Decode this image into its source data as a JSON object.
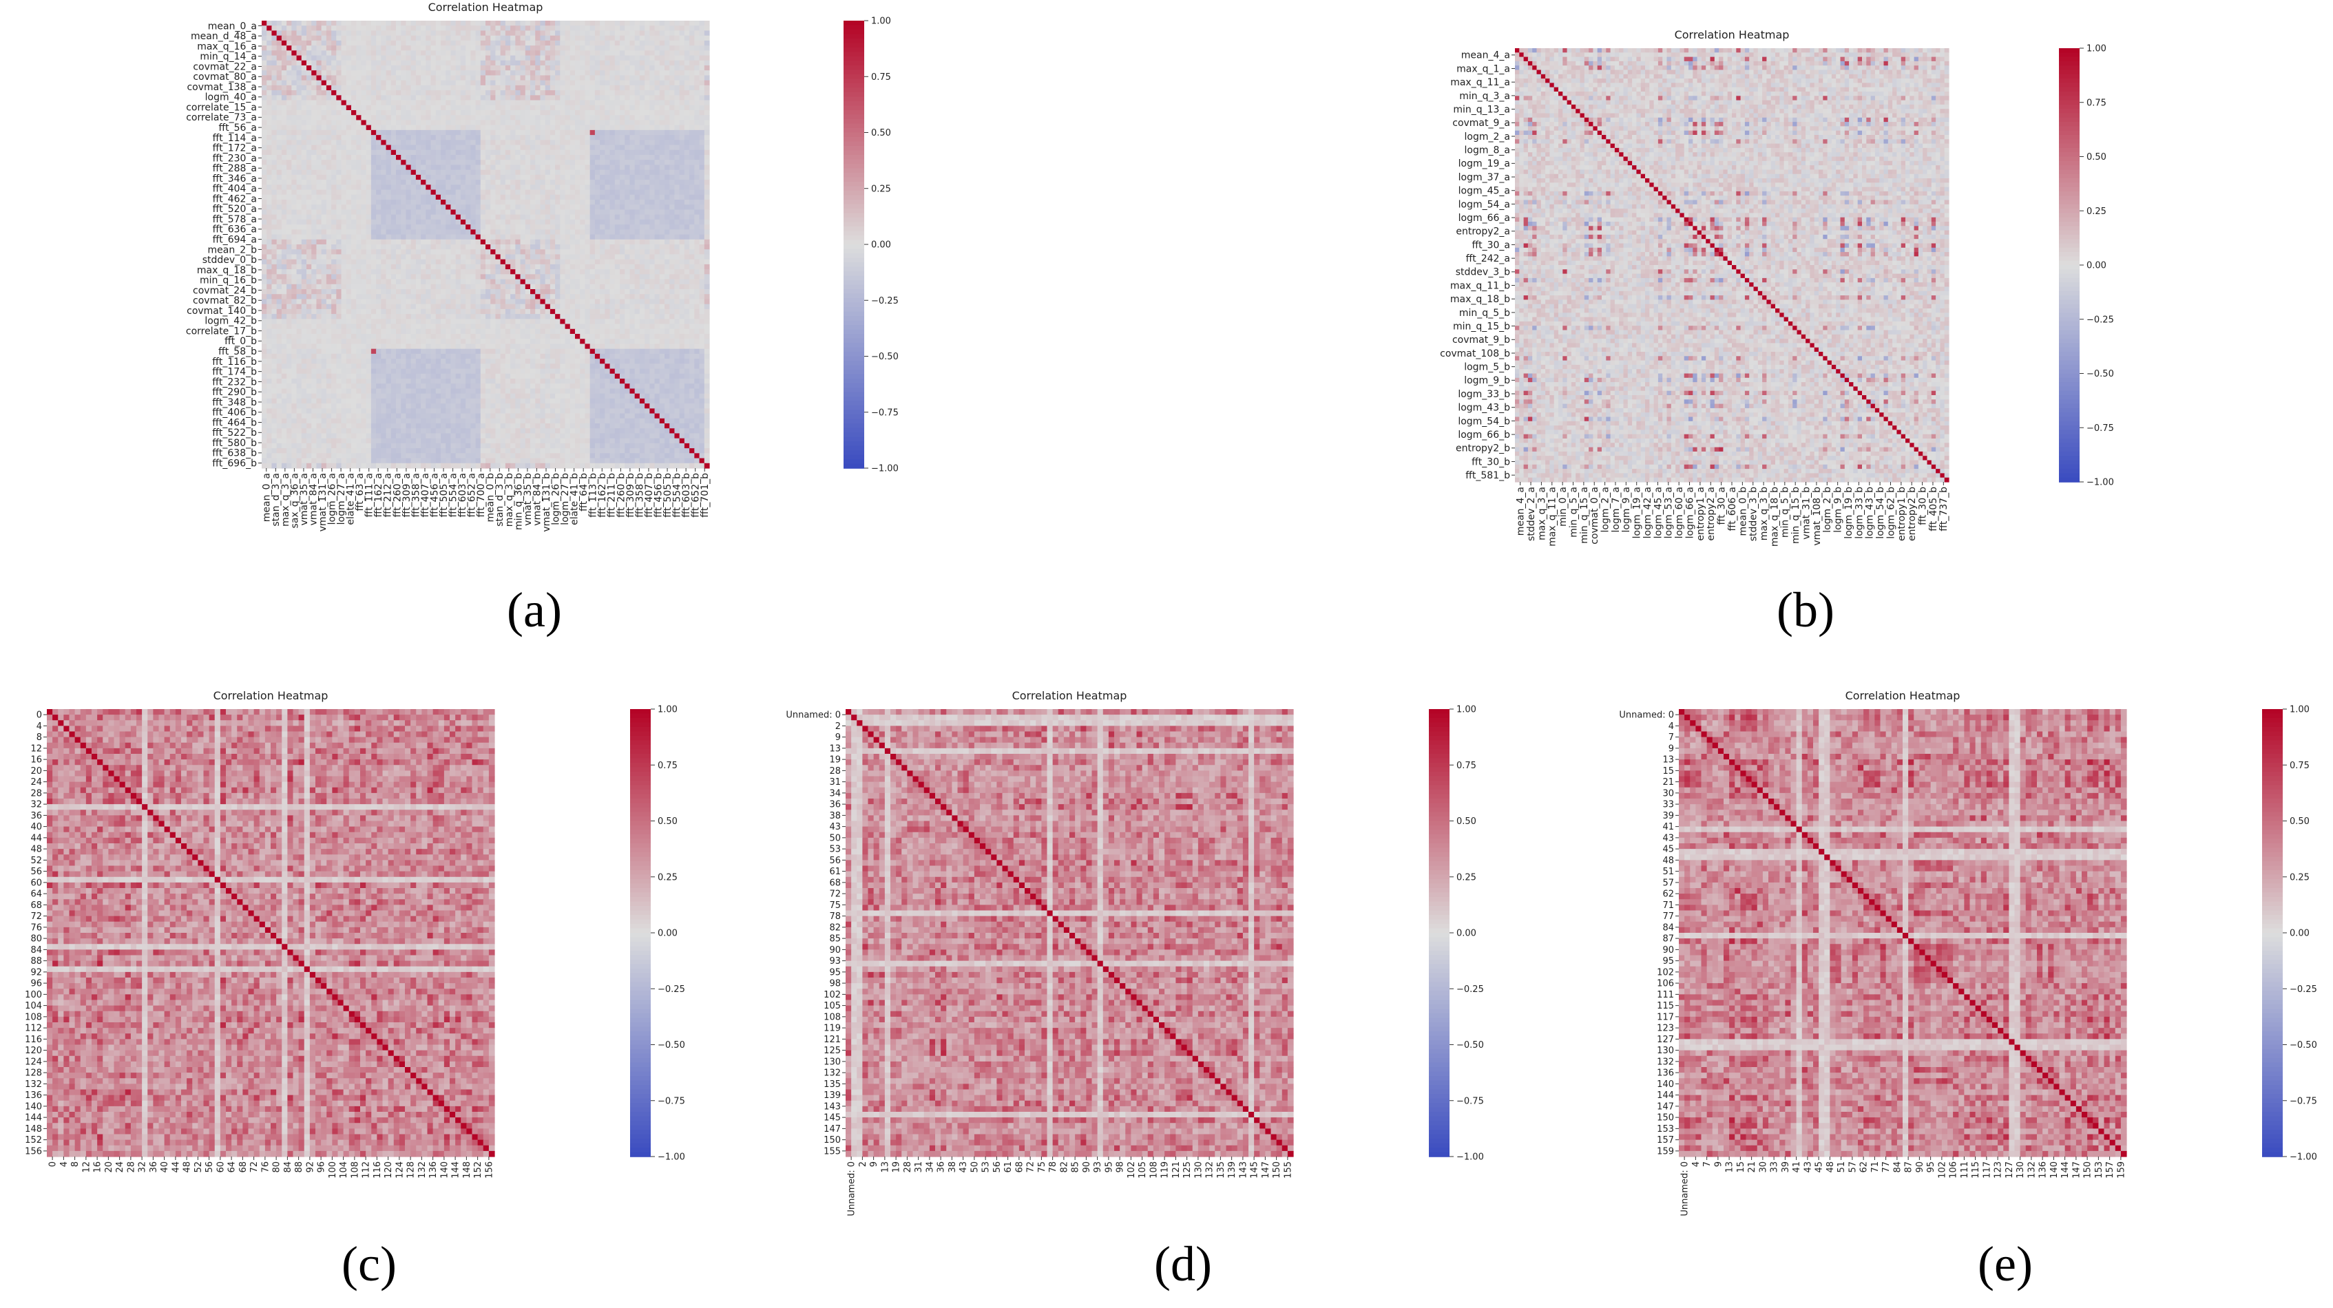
{
  "captions": [
    "(a)",
    "(b)",
    "(c)",
    "(d)",
    "(e)"
  ],
  "colormap": {
    "low": "#3b4cc0",
    "mid": "#dddddd",
    "high": "#b40426"
  },
  "chart_data": [
    {
      "id": "a",
      "type": "heatmap",
      "title": "Correlation Heatmap",
      "xlabel": "",
      "ylabel": "",
      "n": 90,
      "pattern": "features_a",
      "row_labels": [
        "mean_0_a",
        "mean_d_48_a",
        "max_q_16_a",
        "min_q_14_a",
        "covmat_22_a",
        "covmat_80_a",
        "covmat_138_a",
        "logm_40_a",
        "correlate_15_a",
        "correlate_73_a",
        "fft_56_a",
        "fft_114_a",
        "fft_172_a",
        "fft_230_a",
        "fft_288_a",
        "fft_346_a",
        "fft_404_a",
        "fft_462_a",
        "fft_520_a",
        "fft_578_a",
        "fft_636_a",
        "fft_694_a",
        "mean_2_b",
        "stddev_0_b",
        "max_q_18_b",
        "min_q_16_b",
        "covmat_24_b",
        "covmat_82_b",
        "covmat_140_b",
        "logm_42_b",
        "correlate_17_b",
        "fft_0_b",
        "fft_58_b",
        "fft_116_b",
        "fft_174_b",
        "fft_232_b",
        "fft_290_b",
        "fft_348_b",
        "fft_406_b",
        "fft_464_b",
        "fft_522_b",
        "fft_580_b",
        "fft_638_b",
        "fft_696_b"
      ],
      "col_labels": [
        "mean_0_a",
        "stan_d_3_a",
        "max_q_3_a",
        "sax_q_36_a",
        "vmat_35_a",
        "vmat_84_a",
        "vmat_131_a",
        "logm_26_a",
        "logm_27_a",
        "elate_41_a",
        "fft_63_a",
        "fft_111_a",
        "fft_162_a",
        "fft_212_a",
        "fft_260_a",
        "fft_309_a",
        "fft_358_a",
        "fft_407_a",
        "fft_456_a",
        "fft_505_a",
        "fft_554_a",
        "fft_603_a",
        "fft_652_a",
        "fft_700_a",
        "mean_0_b",
        "stan_d_3_b",
        "max_q_3_b",
        "min_q_36_b",
        "vmat_35_b",
        "vmat_84_b",
        "vmat_131_b",
        "logm_26_b",
        "logm_27_b",
        "elate_41_b",
        "fft_64_b",
        "fft_113_b",
        "fft_162_b",
        "fft_211_b",
        "fft_260_b",
        "fft_309_b",
        "fft_358_b",
        "fft_407_b",
        "fft_456_b",
        "fft_505_b",
        "fft_554_b",
        "fft_603_b",
        "fft_652_b",
        "fft_701_b"
      ],
      "colorbar_ticks": [
        "1.00",
        "0.75",
        "0.50",
        "0.25",
        "0.00",
        "−0.25",
        "−0.50",
        "−0.75",
        "−1.00"
      ],
      "vmin": -1,
      "vmax": 1
    },
    {
      "id": "b",
      "type": "heatmap",
      "title": "Correlation Heatmap",
      "xlabel": "",
      "ylabel": "",
      "n": 100,
      "pattern": "features_b",
      "row_labels": [
        "mean_4_a",
        "max_q_1_a",
        "max_q_11_a",
        "min_q_3_a",
        "min_q_13_a",
        "covmat_9_a",
        "logm_2_a",
        "logm_8_a",
        "logm_19_a",
        "logm_37_a",
        "logm_45_a",
        "logm_54_a",
        "logm_66_a",
        "entropy2_a",
        "fft_30_a",
        "fft_242_a",
        "stddev_3_b",
        "max_q_11_b",
        "max_q_18_b",
        "min_q_5_b",
        "min_q_15_b",
        "covmat_9_b",
        "covmat_108_b",
        "logm_5_b",
        "logm_9_b",
        "logm_33_b",
        "logm_43_b",
        "logm_54_b",
        "logm_66_b",
        "entropy2_b",
        "fft_30_b",
        "fft_581_b"
      ],
      "col_labels": [
        "mean_4_a",
        "stddev_2_a",
        "max_q_3_a",
        "max_q_11_a",
        "min_0_a",
        "min_q_5_a",
        "min_q_15_a",
        "covmat_0_a",
        "logm_2_a",
        "logm_7_a",
        "logm_9_a",
        "logm_19_a",
        "logm_42_a",
        "logm_45_a",
        "logm_53_a",
        "logm_60_a",
        "logm_66_a",
        "entropy1_a",
        "entropy2_a",
        "fft_30_a",
        "fft_606_a",
        "mean_0_b",
        "stddev_3_b",
        "max_q_3_b",
        "max_q_18_b",
        "min_q_5_b",
        "min_q_15_b",
        "vmat_31_b",
        "vmat_108_b",
        "logm_2_b",
        "logm_9_b",
        "logm_19_b",
        "logm_33_b",
        "logm_43_b",
        "logm_54_b",
        "logm_62_b",
        "entropy1_b",
        "entropy2_b",
        "fft_30_b",
        "fft_405_b",
        "fft_737_b"
      ],
      "colorbar_ticks": [
        "1.00",
        "0.75",
        "0.50",
        "0.25",
        "0.00",
        "−0.25",
        "−0.50",
        "−0.75",
        "−1.00"
      ],
      "vmin": -1,
      "vmax": 1
    },
    {
      "id": "c",
      "type": "heatmap",
      "title": "Correlation Heatmap",
      "xlabel": "",
      "ylabel": "",
      "n": 80,
      "pattern": "dense_red",
      "seed": 3,
      "row_labels": [
        "0",
        "4",
        "8",
        "12",
        "16",
        "20",
        "24",
        "28",
        "32",
        "36",
        "40",
        "44",
        "48",
        "52",
        "56",
        "60",
        "64",
        "68",
        "72",
        "76",
        "80",
        "84",
        "88",
        "92",
        "96",
        "100",
        "104",
        "108",
        "112",
        "116",
        "120",
        "124",
        "128",
        "132",
        "136",
        "140",
        "144",
        "148",
        "152",
        "156"
      ],
      "col_labels": [
        "0",
        "4",
        "8",
        "12",
        "16",
        "20",
        "24",
        "28",
        "32",
        "36",
        "40",
        "44",
        "48",
        "52",
        "56",
        "60",
        "64",
        "68",
        "72",
        "76",
        "80",
        "84",
        "88",
        "92",
        "96",
        "100",
        "104",
        "108",
        "112",
        "116",
        "120",
        "124",
        "128",
        "132",
        "136",
        "140",
        "144",
        "148",
        "152",
        "156"
      ],
      "colorbar_ticks": [
        "1.00",
        "0.75",
        "0.50",
        "0.25",
        "0.00",
        "−0.25",
        "−0.50",
        "−0.75",
        "−1.00"
      ],
      "vmin": -1,
      "vmax": 1
    },
    {
      "id": "d",
      "type": "heatmap",
      "title": "Correlation Heatmap",
      "xlabel": "",
      "ylabel": "",
      "n": 80,
      "pattern": "dense_red",
      "seed": 7,
      "row_labels": [
        "Unnamed: 0",
        "2",
        "9",
        "13",
        "19",
        "28",
        "31",
        "34",
        "36",
        "38",
        "43",
        "50",
        "53",
        "56",
        "61",
        "68",
        "72",
        "75",
        "78",
        "82",
        "85",
        "90",
        "93",
        "95",
        "98",
        "102",
        "105",
        "108",
        "119",
        "121",
        "125",
        "130",
        "132",
        "135",
        "139",
        "143",
        "145",
        "147",
        "150",
        "155"
      ],
      "col_labels": [
        "Unnamed: 0",
        "2",
        "9",
        "13",
        "19",
        "28",
        "31",
        "34",
        "36",
        "38",
        "43",
        "50",
        "53",
        "56",
        "61",
        "68",
        "72",
        "75",
        "78",
        "82",
        "85",
        "90",
        "93",
        "95",
        "98",
        "102",
        "105",
        "108",
        "119",
        "121",
        "125",
        "130",
        "132",
        "135",
        "139",
        "143",
        "145",
        "147",
        "150",
        "155"
      ],
      "colorbar_ticks": [
        "1.00",
        "0.75",
        "0.50",
        "0.25",
        "0.00",
        "−0.25",
        "−0.50",
        "−0.75",
        "−1.00"
      ],
      "vmin": -1,
      "vmax": 1
    },
    {
      "id": "e",
      "type": "heatmap",
      "title": "Correlation Heatmap",
      "xlabel": "",
      "ylabel": "",
      "n": 80,
      "pattern": "dense_red",
      "seed": 11,
      "row_labels": [
        "Unnamed: 0",
        "4",
        "7",
        "9",
        "13",
        "15",
        "21",
        "30",
        "33",
        "39",
        "41",
        "43",
        "45",
        "48",
        "51",
        "57",
        "62",
        "71",
        "77",
        "84",
        "87",
        "90",
        "95",
        "102",
        "106",
        "111",
        "115",
        "117",
        "123",
        "127",
        "130",
        "132",
        "136",
        "140",
        "144",
        "147",
        "150",
        "153",
        "157",
        "159"
      ],
      "col_labels": [
        "Unnamed: 0",
        "4",
        "7",
        "9",
        "13",
        "15",
        "21",
        "30",
        "33",
        "39",
        "41",
        "43",
        "45",
        "48",
        "51",
        "57",
        "62",
        "71",
        "77",
        "84",
        "87",
        "90",
        "95",
        "102",
        "106",
        "111",
        "115",
        "117",
        "123",
        "127",
        "130",
        "132",
        "136",
        "140",
        "144",
        "147",
        "150",
        "153",
        "157",
        "159"
      ],
      "colorbar_ticks": [
        "1.00",
        "0.75",
        "0.50",
        "0.25",
        "0.00",
        "−0.25",
        "−0.50",
        "−0.75",
        "−1.00"
      ],
      "vmin": -1,
      "vmax": 1
    }
  ]
}
